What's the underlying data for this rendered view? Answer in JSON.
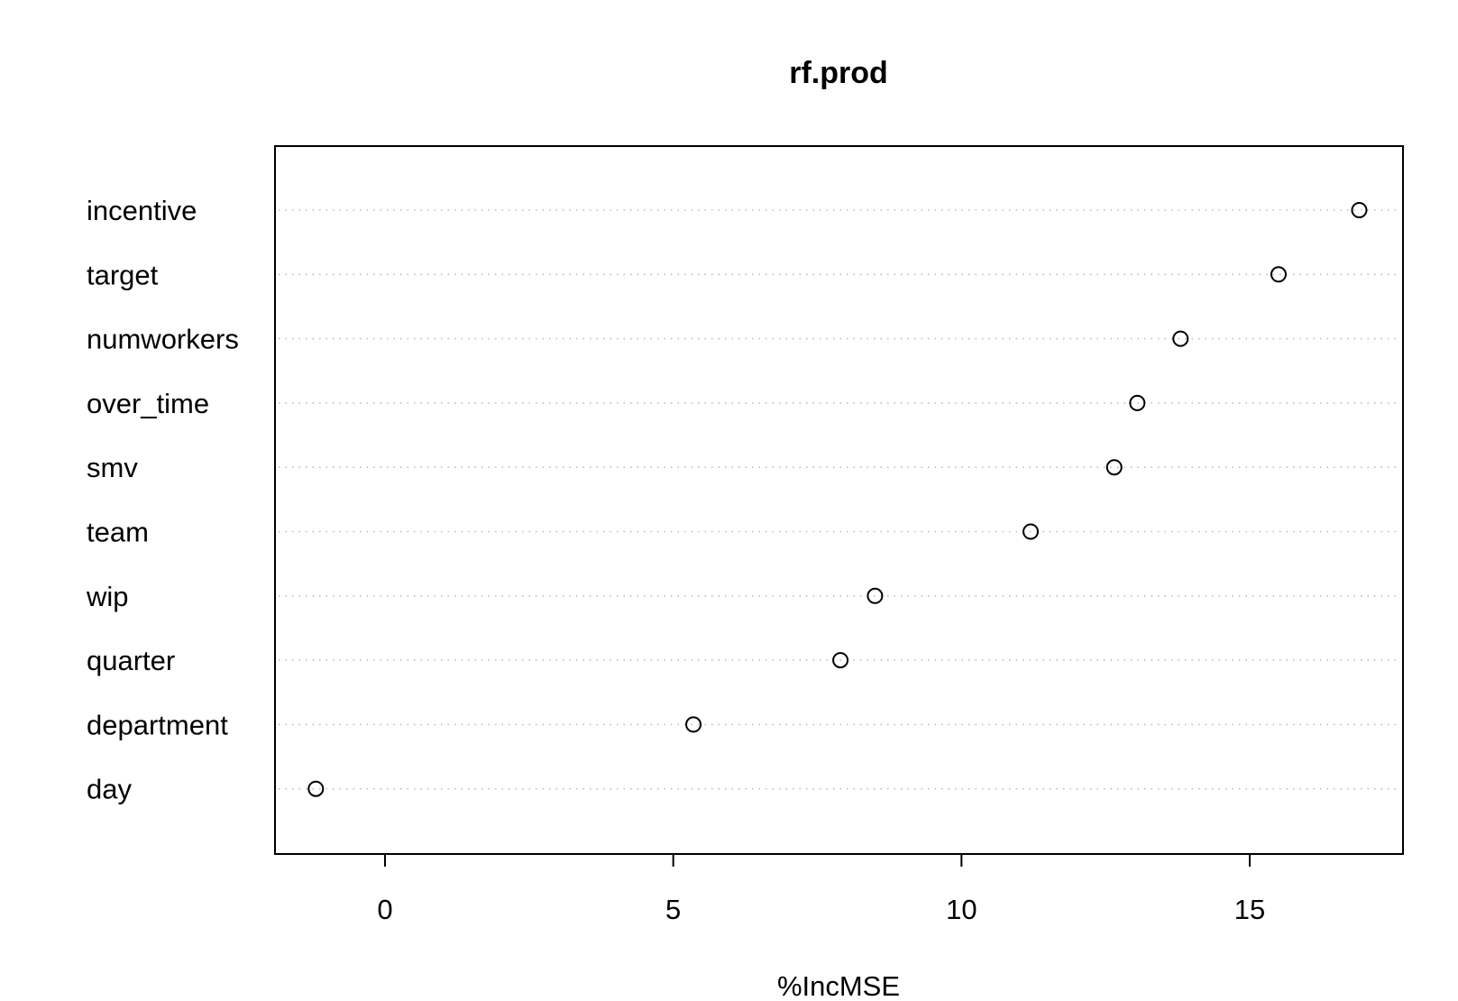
{
  "chart_data": {
    "type": "scatter",
    "title": "rf.prod",
    "xlabel": "%IncMSE",
    "ylabel": "",
    "xlim": [
      -1.9,
      17.7
    ],
    "xticks": [
      0,
      5,
      10,
      15
    ],
    "grid": "dotted horizontal guide lines per variable",
    "series": [
      {
        "marker": "open-circle",
        "points": [
          {
            "label": "incentive",
            "value": 16.9
          },
          {
            "label": "target",
            "value": 15.5
          },
          {
            "label": "numworkers",
            "value": 13.8
          },
          {
            "label": "over_time",
            "value": 13.05
          },
          {
            "label": "smv",
            "value": 12.65
          },
          {
            "label": "team",
            "value": 11.2
          },
          {
            "label": "wip",
            "value": 8.5
          },
          {
            "label": "quarter",
            "value": 7.9
          },
          {
            "label": "department",
            "value": 5.35
          },
          {
            "label": "day",
            "value": -1.2
          }
        ]
      }
    ]
  }
}
